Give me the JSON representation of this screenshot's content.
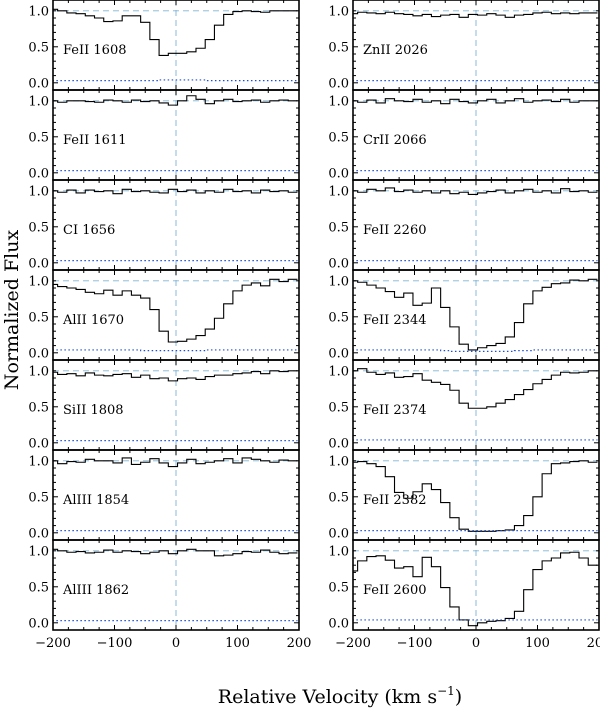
{
  "chart_data": {
    "type": "line",
    "ylabel": "Normalized Flux",
    "xlabel_text": "Relative Velocity  (km s",
    "xlabel_exp": "−1",
    "xlabel_close": ")",
    "xlim": [
      -200,
      200
    ],
    "ylim": [
      -0.1,
      1.15
    ],
    "x_ticks": [
      -200,
      -100,
      0,
      100,
      200
    ],
    "x_tick_labels": [
      "−200",
      "−100",
      "0",
      "100",
      "200"
    ],
    "y_ticks": [
      0.0,
      0.5,
      1.0
    ],
    "y_tick_labels": [
      "0.0",
      "0.5",
      "1.0"
    ],
    "x": [
      -200,
      -185,
      -170,
      -155,
      -140,
      -125,
      -110,
      -95,
      -80,
      -65,
      -50,
      -35,
      -20,
      -5,
      10,
      25,
      40,
      55,
      70,
      85,
      100,
      115,
      130,
      145,
      160,
      175,
      190
    ],
    "panels": [
      {
        "col": 0,
        "row": 0,
        "label": "FeII 1608",
        "flux": [
          1.02,
          1.0,
          0.97,
          0.96,
          0.93,
          0.9,
          0.85,
          0.86,
          0.93,
          0.93,
          0.84,
          0.6,
          0.38,
          0.41,
          0.41,
          0.43,
          0.48,
          0.6,
          0.8,
          0.95,
          0.99,
          1.0,
          0.99,
          0.98,
          1.0,
          1.0,
          1.0
        ],
        "error": [
          0.03,
          0.03,
          0.03,
          0.03,
          0.03,
          0.03,
          0.03,
          0.03,
          0.03,
          0.03,
          0.03,
          0.03,
          0.04,
          0.04,
          0.04,
          0.04,
          0.04,
          0.03,
          0.03,
          0.03,
          0.03,
          0.03,
          0.03,
          0.03,
          0.03,
          0.03,
          0.03
        ]
      },
      {
        "col": 0,
        "row": 1,
        "label": "FeII 1611",
        "flux": [
          1.0,
          0.98,
          1.0,
          1.0,
          0.99,
          0.98,
          1.01,
          1.0,
          0.98,
          1.01,
          0.99,
          1.0,
          0.97,
          0.94,
          1.0,
          1.07,
          1.02,
          0.96,
          1.0,
          1.02,
          0.99,
          1.0,
          1.01,
          0.98,
          1.0,
          1.01,
          1.0
        ],
        "error": [
          0.03,
          0.03,
          0.03,
          0.03,
          0.03,
          0.03,
          0.03,
          0.03,
          0.03,
          0.03,
          0.03,
          0.03,
          0.03,
          0.03,
          0.03,
          0.03,
          0.03,
          0.03,
          0.03,
          0.03,
          0.03,
          0.03,
          0.03,
          0.03,
          0.03,
          0.03,
          0.03
        ]
      },
      {
        "col": 0,
        "row": 2,
        "label": "CI 1656",
        "flux": [
          1.0,
          0.98,
          1.01,
          0.97,
          1.01,
          0.99,
          1.0,
          0.96,
          1.02,
          0.99,
          1.0,
          0.98,
          0.97,
          1.02,
          0.99,
          1.01,
          0.97,
          1.0,
          0.98,
          1.02,
          0.99,
          1.0,
          0.97,
          1.01,
          0.99,
          1.0,
          0.98
        ],
        "error": [
          0.03,
          0.03,
          0.03,
          0.03,
          0.03,
          0.03,
          0.03,
          0.03,
          0.03,
          0.03,
          0.03,
          0.03,
          0.03,
          0.03,
          0.03,
          0.03,
          0.03,
          0.03,
          0.03,
          0.03,
          0.03,
          0.03,
          0.03,
          0.03,
          0.03,
          0.03,
          0.03
        ]
      },
      {
        "col": 0,
        "row": 3,
        "label": "AlII 1670",
        "flux": [
          0.95,
          0.92,
          0.9,
          0.88,
          0.84,
          0.82,
          0.87,
          0.8,
          0.86,
          0.8,
          0.76,
          0.6,
          0.3,
          0.15,
          0.16,
          0.19,
          0.24,
          0.33,
          0.48,
          0.68,
          0.86,
          0.94,
          0.97,
          0.93,
          1.02,
          0.99,
          1.02
        ],
        "error": [
          0.04,
          0.04,
          0.04,
          0.04,
          0.04,
          0.04,
          0.04,
          0.04,
          0.04,
          0.04,
          0.03,
          0.03,
          0.03,
          0.03,
          0.03,
          0.03,
          0.03,
          0.04,
          0.04,
          0.04,
          0.04,
          0.04,
          0.04,
          0.04,
          0.04,
          0.04,
          0.04
        ]
      },
      {
        "col": 0,
        "row": 4,
        "label": "SiII 1808",
        "flux": [
          0.98,
          0.95,
          0.96,
          0.93,
          0.97,
          0.94,
          0.93,
          0.95,
          0.96,
          0.91,
          0.94,
          0.89,
          0.9,
          0.86,
          0.89,
          0.9,
          0.88,
          0.92,
          0.94,
          0.94,
          0.96,
          0.97,
          0.99,
          0.96,
          1.0,
          0.99,
          1.0
        ],
        "error": [
          0.03,
          0.03,
          0.03,
          0.03,
          0.03,
          0.03,
          0.03,
          0.03,
          0.03,
          0.03,
          0.03,
          0.03,
          0.03,
          0.03,
          0.03,
          0.03,
          0.03,
          0.03,
          0.03,
          0.03,
          0.03,
          0.03,
          0.03,
          0.03,
          0.03,
          0.03,
          0.03
        ]
      },
      {
        "col": 0,
        "row": 5,
        "label": "AlIII 1854",
        "flux": [
          1.0,
          0.96,
          0.99,
          0.98,
          1.02,
          1.0,
          1.0,
          0.97,
          1.04,
          0.95,
          0.98,
          1.03,
          0.97,
          0.92,
          0.97,
          1.02,
          0.96,
          0.98,
          1.0,
          1.03,
          0.97,
          1.04,
          1.02,
          1.0,
          0.98,
          1.01,
          1.0
        ],
        "error": [
          0.03,
          0.03,
          0.03,
          0.03,
          0.03,
          0.03,
          0.03,
          0.03,
          0.03,
          0.03,
          0.03,
          0.03,
          0.03,
          0.03,
          0.03,
          0.03,
          0.03,
          0.03,
          0.03,
          0.03,
          0.03,
          0.03,
          0.03,
          0.03,
          0.03,
          0.03,
          0.03
        ]
      },
      {
        "col": 0,
        "row": 6,
        "label": "AlIII 1862",
        "flux": [
          1.02,
          1.0,
          0.98,
          0.99,
          0.97,
          0.98,
          1.01,
          0.98,
          1.0,
          0.99,
          0.96,
          0.98,
          1.0,
          0.96,
          1.0,
          1.02,
          1.0,
          1.0,
          0.93,
          0.94,
          0.96,
          0.99,
          0.98,
          1.01,
          0.98,
          0.96,
          0.97
        ],
        "error": [
          0.03,
          0.03,
          0.03,
          0.03,
          0.03,
          0.03,
          0.03,
          0.03,
          0.03,
          0.03,
          0.03,
          0.03,
          0.03,
          0.03,
          0.03,
          0.03,
          0.03,
          0.03,
          0.03,
          0.03,
          0.03,
          0.03,
          0.03,
          0.03,
          0.03,
          0.03,
          0.03
        ]
      },
      {
        "col": 1,
        "row": 0,
        "label": "ZnII 2026",
        "flux": [
          0.96,
          0.98,
          0.97,
          0.96,
          0.98,
          0.96,
          0.95,
          0.93,
          0.95,
          0.92,
          0.94,
          0.95,
          0.91,
          0.95,
          0.94,
          0.96,
          0.94,
          0.91,
          0.94,
          0.95,
          0.97,
          0.98,
          0.96,
          0.97,
          0.96,
          0.97,
          0.97
        ],
        "error": [
          0.03,
          0.03,
          0.03,
          0.03,
          0.03,
          0.03,
          0.03,
          0.03,
          0.03,
          0.03,
          0.03,
          0.03,
          0.03,
          0.03,
          0.03,
          0.03,
          0.03,
          0.03,
          0.03,
          0.03,
          0.03,
          0.03,
          0.03,
          0.03,
          0.03,
          0.03,
          0.03
        ]
      },
      {
        "col": 1,
        "row": 1,
        "label": "CrII 2066",
        "flux": [
          1.0,
          0.98,
          1.01,
          0.97,
          1.03,
          1.0,
          0.99,
          1.02,
          0.98,
          1.0,
          0.96,
          1.02,
          0.99,
          0.97,
          1.0,
          1.02,
          0.97,
          1.0,
          1.03,
          0.98,
          1.0,
          1.01,
          0.99,
          1.02,
          0.98,
          1.0,
          1.0
        ],
        "error": [
          0.03,
          0.03,
          0.03,
          0.03,
          0.03,
          0.03,
          0.03,
          0.03,
          0.03,
          0.03,
          0.03,
          0.03,
          0.03,
          0.03,
          0.03,
          0.03,
          0.03,
          0.03,
          0.03,
          0.03,
          0.03,
          0.03,
          0.03,
          0.03,
          0.03,
          0.03,
          0.03
        ]
      },
      {
        "col": 1,
        "row": 2,
        "label": "FeII 2260",
        "flux": [
          1.0,
          0.98,
          1.02,
          1.0,
          1.04,
          0.99,
          1.01,
          0.98,
          1.0,
          0.97,
          1.0,
          0.96,
          0.98,
          0.95,
          0.97,
          0.99,
          1.01,
          0.97,
          1.0,
          1.02,
          0.98,
          1.0,
          0.97,
          1.03,
          0.99,
          1.0,
          0.98
        ],
        "error": [
          0.03,
          0.03,
          0.03,
          0.03,
          0.03,
          0.03,
          0.03,
          0.03,
          0.03,
          0.03,
          0.03,
          0.03,
          0.03,
          0.03,
          0.03,
          0.03,
          0.03,
          0.03,
          0.03,
          0.03,
          0.03,
          0.03,
          0.03,
          0.03,
          0.03,
          0.03,
          0.03
        ]
      },
      {
        "col": 1,
        "row": 3,
        "label": "FeII 2344",
        "flux": [
          1.0,
          0.98,
          0.94,
          0.9,
          0.85,
          0.77,
          0.83,
          0.66,
          0.69,
          0.9,
          0.63,
          0.36,
          0.12,
          0.04,
          0.07,
          0.1,
          0.13,
          0.22,
          0.42,
          0.68,
          0.86,
          0.91,
          0.96,
          0.97,
          1.01,
          1.0,
          1.02
        ],
        "error": [
          0.04,
          0.04,
          0.04,
          0.04,
          0.04,
          0.04,
          0.04,
          0.04,
          0.04,
          0.04,
          0.03,
          0.02,
          0.02,
          0.02,
          0.02,
          0.02,
          0.02,
          0.02,
          0.03,
          0.03,
          0.04,
          0.04,
          0.04,
          0.04,
          0.04,
          0.04,
          0.04
        ]
      },
      {
        "col": 1,
        "row": 4,
        "label": "FeII 2374",
        "flux": [
          1.0,
          1.03,
          0.98,
          0.95,
          0.97,
          0.91,
          0.92,
          0.96,
          0.87,
          0.84,
          0.81,
          0.73,
          0.55,
          0.48,
          0.48,
          0.5,
          0.55,
          0.6,
          0.67,
          0.74,
          0.82,
          0.88,
          0.94,
          0.98,
          0.97,
          0.98,
          1.0
        ],
        "error": [
          0.04,
          0.04,
          0.04,
          0.04,
          0.04,
          0.04,
          0.04,
          0.04,
          0.04,
          0.04,
          0.04,
          0.04,
          0.04,
          0.04,
          0.04,
          0.04,
          0.04,
          0.04,
          0.04,
          0.04,
          0.04,
          0.04,
          0.04,
          0.04,
          0.04,
          0.04,
          0.04
        ]
      },
      {
        "col": 1,
        "row": 5,
        "label": "FeII 2382",
        "flux": [
          0.98,
          0.99,
          0.96,
          0.92,
          0.78,
          0.56,
          0.48,
          0.57,
          0.68,
          0.6,
          0.42,
          0.21,
          0.05,
          0.02,
          0.02,
          0.02,
          0.03,
          0.04,
          0.1,
          0.24,
          0.5,
          0.82,
          0.96,
          0.97,
          0.99,
          1.0,
          0.98
        ],
        "error": [
          0.03,
          0.03,
          0.03,
          0.03,
          0.03,
          0.03,
          0.03,
          0.03,
          0.03,
          0.03,
          0.03,
          0.03,
          0.03,
          0.03,
          0.03,
          0.03,
          0.03,
          0.03,
          0.03,
          0.03,
          0.03,
          0.03,
          0.03,
          0.03,
          0.03,
          0.03,
          0.03
        ]
      },
      {
        "col": 1,
        "row": 6,
        "label": "FeII 2600",
        "flux": [
          0.72,
          0.86,
          0.92,
          0.93,
          0.87,
          0.76,
          0.78,
          0.64,
          0.91,
          0.78,
          0.49,
          0.22,
          0.04,
          -0.04,
          0.0,
          0.02,
          0.03,
          0.06,
          0.16,
          0.46,
          0.74,
          0.86,
          0.9,
          0.97,
          0.98,
          0.9,
          0.8
        ],
        "error": [
          0.04,
          0.04,
          0.04,
          0.04,
          0.04,
          0.04,
          0.04,
          0.04,
          0.04,
          0.04,
          0.04,
          0.04,
          0.04,
          0.04,
          0.04,
          0.04,
          0.04,
          0.04,
          0.04,
          0.04,
          0.04,
          0.04,
          0.04,
          0.04,
          0.04,
          0.04,
          0.04
        ]
      }
    ]
  }
}
